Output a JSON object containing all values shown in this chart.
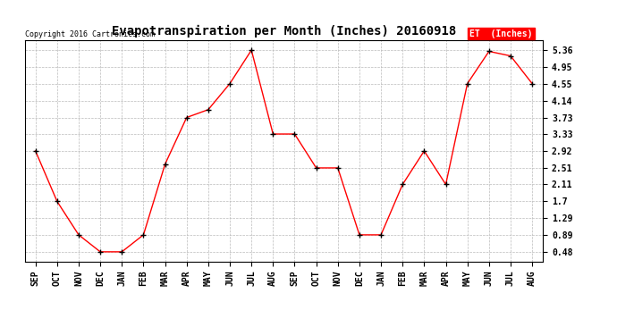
{
  "title": "Evapotranspiration per Month (Inches) 20160918",
  "copyright": "Copyright 2016 Cartronics.com",
  "legend_label": "ET  (Inches)",
  "x_labels": [
    "SEP",
    "OCT",
    "NOV",
    "DEC",
    "JAN",
    "FEB",
    "MAR",
    "APR",
    "MAY",
    "JUN",
    "JUL",
    "AUG",
    "SEP",
    "OCT",
    "NOV",
    "DEC",
    "JAN",
    "FEB",
    "MAR",
    "APR",
    "MAY",
    "JUN",
    "JUL",
    "AUG"
  ],
  "y_values": [
    2.92,
    1.7,
    0.89,
    0.48,
    0.48,
    0.89,
    2.6,
    3.73,
    3.92,
    4.55,
    5.36,
    3.33,
    3.33,
    2.51,
    2.51,
    0.89,
    0.89,
    2.11,
    2.92,
    2.11,
    4.55,
    5.33,
    5.22,
    4.55
  ],
  "yticks": [
    0.48,
    0.89,
    1.29,
    1.7,
    2.11,
    2.51,
    2.92,
    3.33,
    3.73,
    4.14,
    4.55,
    4.95,
    5.36
  ],
  "ylim": [
    0.25,
    5.6
  ],
  "line_color": "red",
  "marker_color": "black",
  "background_color": "white",
  "grid_color": "#bbbbbb",
  "title_fontsize": 10,
  "tick_fontsize": 7,
  "copyright_fontsize": 6,
  "legend_fontsize": 7,
  "legend_bg": "red",
  "legend_fg": "white"
}
